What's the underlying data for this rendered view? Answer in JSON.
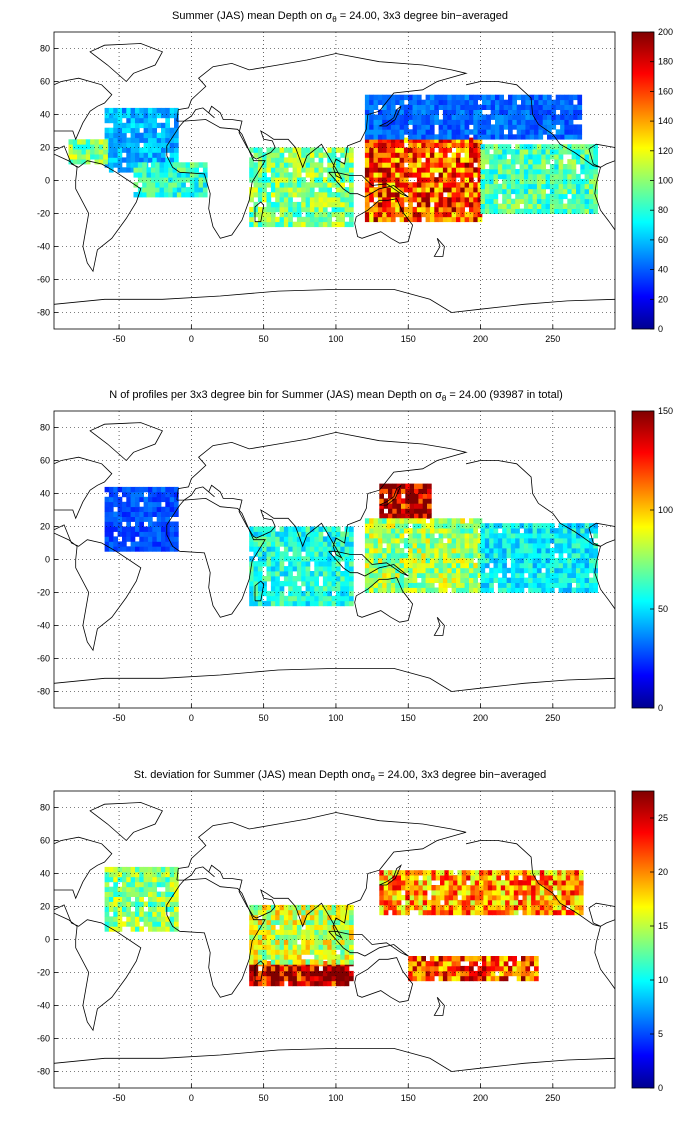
{
  "chart_data": [
    {
      "type": "heatmap",
      "title": {
        "prefix": "Summer (JAS) mean Depth on ",
        "sigma": "σ",
        "sub": "θ",
        "suffix": " = 24.00, 3x3 degree bin−averaged"
      },
      "xlim": [
        -95,
        293
      ],
      "ylim": [
        -90,
        90
      ],
      "xticks": [
        -50,
        0,
        50,
        100,
        150,
        200,
        250
      ],
      "yticks": [
        -80,
        -60,
        -40,
        -20,
        0,
        20,
        40,
        60,
        80
      ],
      "grid": true,
      "colorbar": {
        "range": [
          0,
          200
        ],
        "ticks": [
          0,
          20,
          40,
          60,
          80,
          100,
          120,
          140,
          160,
          180,
          200
        ],
        "colormap": "jet",
        "position": "right"
      },
      "regions": [
        {
          "region": "North Atlantic",
          "x": [
            -60,
            -10
          ],
          "y": [
            5,
            42
          ],
          "value": 60
        },
        {
          "region": "Tropical Atlantic",
          "x": [
            -40,
            10
          ],
          "y": [
            -10,
            10
          ],
          "value": 85
        },
        {
          "region": "Caribbean",
          "x": [
            -85,
            -60
          ],
          "y": [
            10,
            25
          ],
          "value": 100
        },
        {
          "region": "Indian Ocean",
          "x": [
            40,
            110
          ],
          "y": [
            -28,
            20
          ],
          "value": 100
        },
        {
          "region": "West Pacific warm pool",
          "x": [
            120,
            200
          ],
          "y": [
            -25,
            25
          ],
          "value": 160
        },
        {
          "region": "North Pacific",
          "x": [
            120,
            270
          ],
          "y": [
            25,
            50
          ],
          "value": 45
        },
        {
          "region": "East Pacific",
          "x": [
            200,
            280
          ],
          "y": [
            -20,
            20
          ],
          "value": 90
        }
      ]
    },
    {
      "type": "heatmap",
      "title": {
        "prefix": "N of profiles per 3x3 degree bin for Summer (JAS) mean Depth on ",
        "sigma": "σ",
        "sub": "θ",
        "suffix": " = 24.00 (93987 in total)"
      },
      "xlim": [
        -95,
        293
      ],
      "ylim": [
        -90,
        90
      ],
      "xticks": [
        -50,
        0,
        50,
        100,
        150,
        200,
        250
      ],
      "yticks": [
        -80,
        -60,
        -40,
        -20,
        0,
        20,
        40,
        60,
        80
      ],
      "grid": true,
      "colorbar": {
        "range": [
          0,
          150
        ],
        "ticks": [
          0,
          50,
          100,
          150
        ],
        "colormap": "jet",
        "position": "right"
      },
      "regions": [
        {
          "region": "North Atlantic",
          "x": [
            -60,
            -10
          ],
          "y": [
            5,
            42
          ],
          "value": 30
        },
        {
          "region": "Indian Ocean",
          "x": [
            40,
            110
          ],
          "y": [
            -28,
            20
          ],
          "value": 60
        },
        {
          "region": "Kuroshio",
          "x": [
            130,
            165
          ],
          "y": [
            25,
            45
          ],
          "value": 140
        },
        {
          "region": "West Pacific",
          "x": [
            120,
            200
          ],
          "y": [
            -20,
            25
          ],
          "value": 80
        },
        {
          "region": "East Pacific",
          "x": [
            200,
            280
          ],
          "y": [
            -20,
            20
          ],
          "value": 55
        }
      ]
    },
    {
      "type": "heatmap",
      "title": {
        "prefix": "St. deviation for Summer (JAS) mean Depth on",
        "sigma": "σ",
        "sub": "θ",
        "suffix": " = 24.00, 3x3 degree bin−averaged"
      },
      "xlim": [
        -95,
        293
      ],
      "ylim": [
        -90,
        90
      ],
      "xticks": [
        -50,
        0,
        50,
        100,
        150,
        200,
        250
      ],
      "yticks": [
        -80,
        -60,
        -40,
        -20,
        0,
        20,
        40,
        60,
        80
      ],
      "grid": true,
      "colorbar": {
        "range": [
          0,
          27.5
        ],
        "ticks": [
          0,
          5,
          10,
          15,
          20,
          25
        ],
        "colormap": "jet",
        "position": "right"
      },
      "regions": [
        {
          "region": "North Atlantic",
          "x": [
            -60,
            -10
          ],
          "y": [
            5,
            42
          ],
          "value": 14
        },
        {
          "region": "South Indian",
          "x": [
            40,
            110
          ],
          "y": [
            -28,
            -15
          ],
          "value": 26
        },
        {
          "region": "Indian Ocean",
          "x": [
            40,
            110
          ],
          "y": [
            -15,
            20
          ],
          "value": 16
        },
        {
          "region": "North Pacific",
          "x": [
            130,
            270
          ],
          "y": [
            15,
            40
          ],
          "value": 20
        },
        {
          "region": "South Pacific",
          "x": [
            150,
            240
          ],
          "y": [
            -25,
            -10
          ],
          "value": 22
        }
      ]
    }
  ]
}
